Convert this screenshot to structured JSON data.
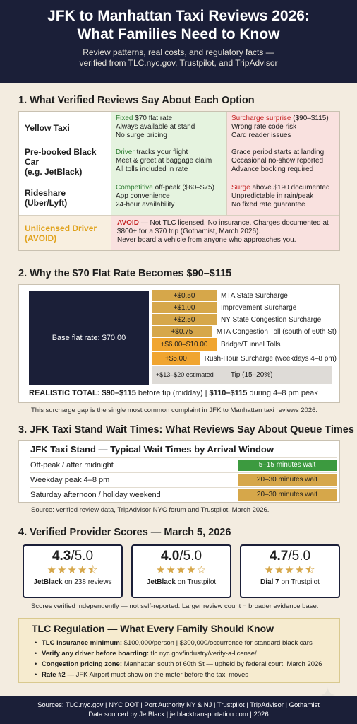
{
  "header": {
    "title_line1": "JFK to Manhattan Taxi Reviews 2026:",
    "title_line2": "What Families Need to Know",
    "subtitle_line1": "Review patterns, real costs, and regulatory facts —",
    "subtitle_line2": "verified from TLC.nyc.gov, Trustpilot, and TripAdvisor"
  },
  "section1": {
    "title": "1. What Verified Reviews Say About Each Option",
    "rows": [
      {
        "name_line1": "Yellow Taxi",
        "name_line2": "",
        "pro_hl": "Fixed",
        "pro_rest": " $70 flat rate",
        "pro_line2": "Always available at stand",
        "pro_line3": "No surge pricing",
        "con_hl": "Surcharge surprise",
        "con_rest": " ($90–$115)",
        "con_line2": "Wrong rate code risk",
        "con_line3": "Card reader issues"
      },
      {
        "name_line1": "Pre-booked Black Car",
        "name_line2": "(e.g. JetBlack)",
        "pro_hl": "Driver",
        "pro_rest": " tracks your flight",
        "pro_line2": "Meet & greet at baggage claim",
        "pro_line3": "All tolls included in rate",
        "con_hl": "",
        "con_rest": "Grace period starts at landing",
        "con_line2": "Occasional no-show reported",
        "con_line3": "Advance booking required"
      },
      {
        "name_line1": "Rideshare",
        "name_line2": "(Uber/Lyft)",
        "pro_hl": "Competitive",
        "pro_rest": " off-peak ($60–$75)",
        "pro_line2": "App convenience",
        "pro_line3": "24-hour availability",
        "con_hl": "Surge",
        "con_rest": " above $190 documented",
        "con_line2": "Unpredictable in rain/peak",
        "con_line3": "No fixed rate guarantee"
      }
    ],
    "unlicensed": {
      "name_line1": "Unlicensed Driver",
      "name_line2": "(AVOID)",
      "warn_hl": "AVOID",
      "warn_line1": " — Not TLC licensed. No insurance. Charges documented at",
      "warn_line2": "$800+ for a $70 trip (Gothamist, March 2026).",
      "warn_line3": "Never board a vehicle from anyone who approaches you."
    }
  },
  "section2": {
    "title": "2. Why the $70 Flat Rate Becomes $90–$115",
    "base_label": "Base flat rate: $70.00",
    "surcharges": [
      {
        "amount": "+$0.50",
        "name": "MTA State Surcharge"
      },
      {
        "amount": "+$1.00",
        "name": "Improvement Surcharge"
      },
      {
        "amount": "+$2.50",
        "name": "NY State Congestion Surcharge"
      },
      {
        "amount": "+$0.75",
        "name": "MTA Congestion Toll (south of 60th St)"
      },
      {
        "amount": "+$6.00–$10.00",
        "name": "Bridge/Tunnel Tolls"
      },
      {
        "amount": "+$5.00",
        "name": "Rush-Hour Surcharge (weekdays 4–8 pm)"
      }
    ],
    "tip_amount": "+$13–$20 estimated",
    "tip_label": "Tip (15–20%)",
    "realistic_bold1": "REALISTIC TOTAL: $90–$115",
    "realistic_rest1": " before tip (midday) | ",
    "realistic_bold2": "$110–$115",
    "realistic_rest2": " during 4–8 pm peak",
    "note": "This surcharge gap is the single most common complaint in JFK to Manhattan taxi reviews 2026."
  },
  "section3": {
    "title": "3. JFK Taxi Stand Wait Times: What Reviews Say About Queue Times",
    "box_title": "JFK Taxi Stand — Typical Wait Times by Arrival Window",
    "rows": [
      {
        "label": "Off-peak / after midnight",
        "wait": "5–15 minutes wait"
      },
      {
        "label": "Weekday peak 4–8 pm",
        "wait": "20–30 minutes wait"
      },
      {
        "label": "Saturday afternoon / holiday weekend",
        "wait": "20–30 minutes wait"
      }
    ],
    "source": "Source: verified review data, TripAdvisor NYC forum and Trustpilot, March 2026.",
    "colors": {
      "green": "#3c9a3f",
      "gold": "#d6a74a"
    }
  },
  "section4": {
    "title": "4. Verified Provider Scores — March 5, 2026",
    "cards": [
      {
        "score": "4.3",
        "scale": "/5.0",
        "provider": "JetBlack",
        "source": " on 238 reviews",
        "stars": 4.3
      },
      {
        "score": "4.0",
        "scale": "/5.0",
        "provider": "JetBlack",
        "source": " on Trustpilot",
        "stars": 4.0
      },
      {
        "score": "4.7",
        "scale": "/5.0",
        "provider": "Dial 7",
        "source": " on Trustpilot",
        "stars": 4.7
      }
    ],
    "note": "Scores verified independently — not self-reported. Larger review count = broader evidence base."
  },
  "tlc": {
    "title": "TLC Regulation — What Every Family Should Know",
    "items": [
      {
        "bold": "TLC insurance minimum:",
        "text": " $100,000/person | $300,000/occurrence for standard black cars"
      },
      {
        "bold": "Verify any driver before boarding:",
        "text": " tlc.nyc.gov/industry/verify-a-license/"
      },
      {
        "bold": "Congestion pricing zone:",
        "text": " Manhattan south of 60th St — upheld by federal court, March 2026"
      },
      {
        "bold": "Rate #2",
        "text": " — JFK Airport must show on the meter before the taxi moves"
      }
    ]
  },
  "footer": {
    "line1": "Sources: TLC.nyc.gov | NYC DOT | Port Authority NY & NJ | Trustpilot | TripAdvisor | Gothamist",
    "line2": "Data sourced by JetBlack | jetblacktransportation.com | 2026"
  },
  "theme": {
    "navy": "#1b1f38",
    "gold": "#d6a74a",
    "orange": "#f0a530",
    "green_bg": "#e5f3df",
    "red_bg": "#f9e1df"
  }
}
